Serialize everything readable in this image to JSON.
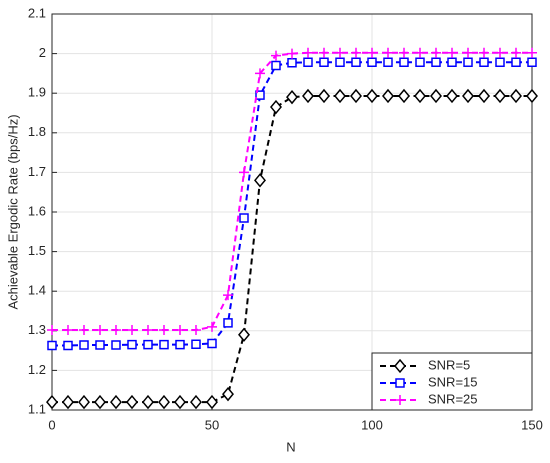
{
  "chart_data": {
    "type": "line",
    "xlabel": "N",
    "ylabel": "Achievable Ergodic Rate (bps/Hz)",
    "x": [
      0,
      5,
      10,
      15,
      20,
      25,
      30,
      35,
      40,
      45,
      50,
      55,
      60,
      65,
      70,
      75,
      80,
      85,
      90,
      95,
      100,
      105,
      110,
      115,
      120,
      125,
      130,
      135,
      140,
      145,
      150
    ],
    "series": [
      {
        "name": "SNR=5",
        "color": "#000000",
        "marker": "diamond",
        "linestyle": "dashed",
        "values": [
          1.12,
          1.12,
          1.12,
          1.12,
          1.12,
          1.12,
          1.12,
          1.12,
          1.12,
          1.12,
          1.12,
          1.14,
          1.29,
          1.68,
          1.865,
          1.89,
          1.893,
          1.893,
          1.893,
          1.893,
          1.893,
          1.893,
          1.893,
          1.893,
          1.893,
          1.893,
          1.893,
          1.893,
          1.893,
          1.893,
          1.893
        ]
      },
      {
        "name": "SNR=15",
        "color": "#0000ff",
        "marker": "square",
        "linestyle": "dashed",
        "values": [
          1.263,
          1.263,
          1.264,
          1.264,
          1.264,
          1.265,
          1.265,
          1.265,
          1.265,
          1.266,
          1.268,
          1.32,
          1.585,
          1.895,
          1.97,
          1.977,
          1.978,
          1.978,
          1.978,
          1.978,
          1.978,
          1.978,
          1.978,
          1.978,
          1.978,
          1.978,
          1.978,
          1.978,
          1.978,
          1.978,
          1.978
        ]
      },
      {
        "name": "SNR=25",
        "color": "#ff00ff",
        "marker": "plus",
        "linestyle": "dashed",
        "values": [
          1.302,
          1.302,
          1.302,
          1.302,
          1.302,
          1.302,
          1.302,
          1.302,
          1.302,
          1.302,
          1.31,
          1.39,
          1.7,
          1.95,
          1.995,
          2.0,
          2.002,
          2.002,
          2.002,
          2.002,
          2.002,
          2.002,
          2.002,
          2.002,
          2.002,
          2.002,
          2.002,
          2.002,
          2.002,
          2.002,
          2.002
        ]
      }
    ],
    "xlim": [
      0,
      150
    ],
    "xticks": [
      0,
      50,
      100,
      150
    ],
    "ylim": [
      1.1,
      2.1
    ],
    "yticks": [
      1.1,
      1.2,
      1.3,
      1.4,
      1.5,
      1.6,
      1.7,
      1.8,
      1.9,
      2,
      2.1
    ],
    "grid": true,
    "legend": "lower right"
  }
}
